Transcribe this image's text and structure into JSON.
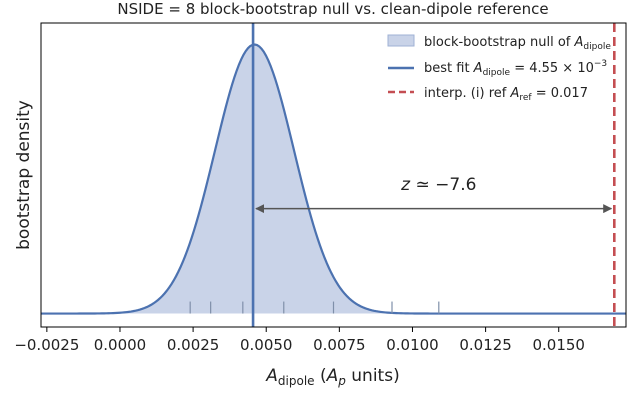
{
  "chart_data": {
    "type": "area",
    "title": "NSIDE = 8 block-bootstrap null vs. clean-dipole reference",
    "xlabel": "A_dipole (A_p units)",
    "ylabel": "bootstrap density",
    "xlim": [
      -0.0027,
      0.0173
    ],
    "ylim": [
      -0.05,
      1.08
    ],
    "x_ticks": [
      -0.0025,
      0.0,
      0.0025,
      0.005,
      0.0075,
      0.01,
      0.0125,
      0.015
    ],
    "x_tick_labels": [
      "−0.0025",
      "0.0000",
      "0.0025",
      "0.0050",
      "0.0075",
      "0.0100",
      "0.0125",
      "0.0150"
    ],
    "y_ticks_shown": false,
    "grid": false,
    "legend_position": "top-right",
    "null_distribution": {
      "name": "block-bootstrap null of A_dipole",
      "shape": "gaussian",
      "mean": 0.0046,
      "sigma": 0.00135,
      "peak_density": 1.0,
      "color": "#4c72b0",
      "fill_color": "#c9d3e8"
    },
    "best_fit": {
      "name": "best fit A_dipole = 4.55 × 10^−3",
      "value": 0.00455,
      "color": "#4c72b0"
    },
    "reference": {
      "name": "interp. (i) ref A_ref = 0.017",
      "value": 0.0169,
      "color": "#c44e52"
    },
    "rug_values": [
      0.0024,
      0.0031,
      0.0042,
      0.0056,
      0.0073,
      0.0093,
      0.0109
    ],
    "annotation": {
      "text": "z ≃ −7.6",
      "x": 0.0109,
      "y": 0.46,
      "arrow_from": 0.00455,
      "arrow_to": 0.0169,
      "arrow_y": 0.39
    }
  }
}
